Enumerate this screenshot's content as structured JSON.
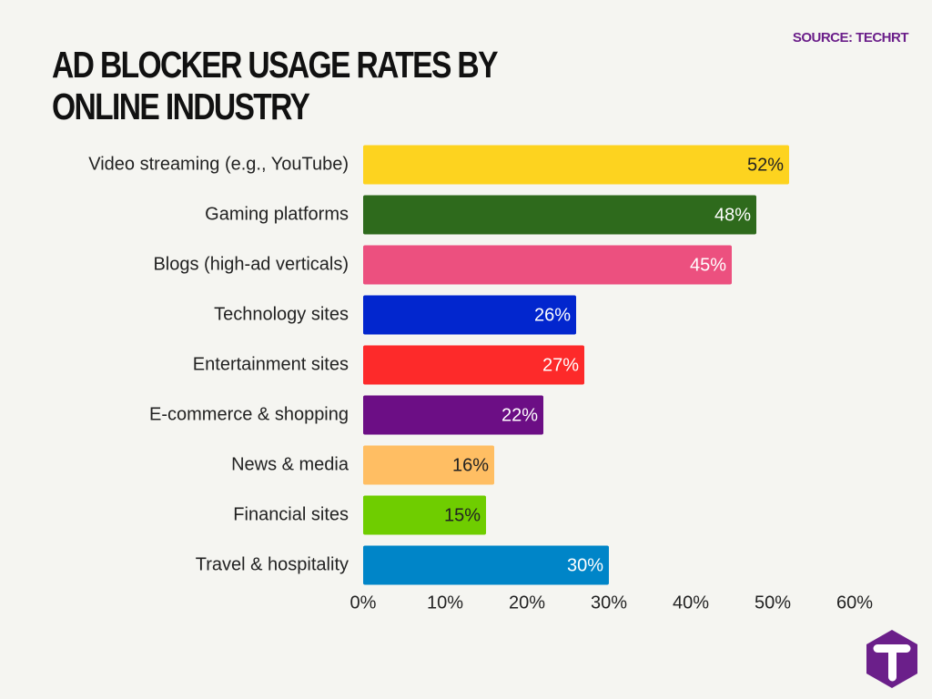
{
  "chart_data": {
    "type": "bar",
    "orientation": "horizontal",
    "title": "AD BLOCKER USAGE RATES BY ONLINE INDUSTRY",
    "source": "SOURCE: TECHRT",
    "categories": [
      "Video streaming (e.g., YouTube)",
      "Gaming platforms",
      "Blogs (high-ad verticals)",
      "Technology sites",
      "Entertainment sites",
      "E-commerce & shopping",
      "News & media",
      "Financial sites",
      "Travel & hospitality"
    ],
    "values": [
      52,
      48,
      45,
      26,
      27,
      22,
      16,
      15,
      30
    ],
    "value_labels": [
      "52%",
      "48%",
      "45%",
      "26%",
      "27%",
      "22%",
      "16%",
      "15%",
      "30%"
    ],
    "colors": [
      "#fdd31f",
      "#2e6a1c",
      "#ec507f",
      "#0226ce",
      "#fd2a2a",
      "#6c0e85",
      "#ffbe63",
      "#6fcd00",
      "#0085c8"
    ],
    "xlim": [
      0,
      60
    ],
    "xticks": [
      {
        "value": 0,
        "label": "0%"
      },
      {
        "value": 10,
        "label": "10%"
      },
      {
        "value": 20,
        "label": "20%"
      },
      {
        "value": 30,
        "label": "30%"
      },
      {
        "value": 40,
        "label": "40%"
      },
      {
        "value": 50,
        "label": "50%"
      },
      {
        "value": 60,
        "label": "60%"
      }
    ],
    "grid": false
  }
}
